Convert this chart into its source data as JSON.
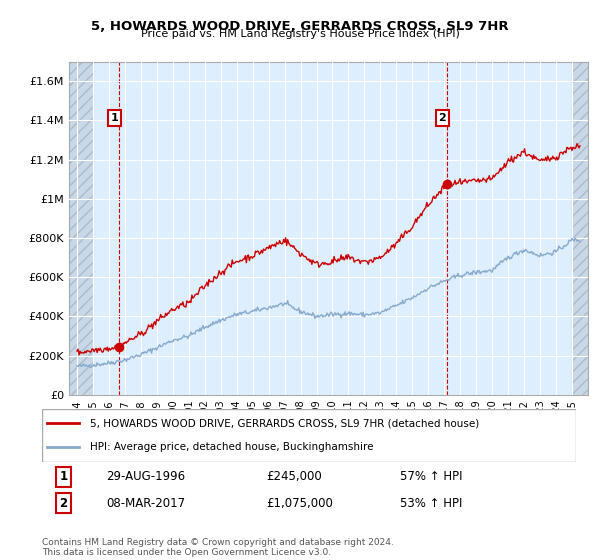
{
  "title": "5, HOWARDS WOOD DRIVE, GERRARDS CROSS, SL9 7HR",
  "subtitle": "Price paid vs. HM Land Registry's House Price Index (HPI)",
  "legend_line1": "5, HOWARDS WOOD DRIVE, GERRARDS CROSS, SL9 7HR (detached house)",
  "legend_line2": "HPI: Average price, detached house, Buckinghamshire",
  "annotation1_date": "29-AUG-1996",
  "annotation1_price": "£245,000",
  "annotation1_hpi": "57% ↑ HPI",
  "annotation2_date": "08-MAR-2017",
  "annotation2_price": "£1,075,000",
  "annotation2_hpi": "53% ↑ HPI",
  "footnote": "Contains HM Land Registry data © Crown copyright and database right 2024.\nThis data is licensed under the Open Government Licence v3.0.",
  "red_color": "#cc0000",
  "blue_color": "#88aacc",
  "chart_bg": "#ddeeff",
  "hatch_color": "#bbccdd",
  "ylim": [
    0,
    1700000
  ],
  "yticks": [
    0,
    200000,
    400000,
    600000,
    800000,
    1000000,
    1200000,
    1400000,
    1600000
  ],
  "ytick_labels": [
    "£0",
    "£200K",
    "£400K",
    "£600K",
    "£800K",
    "£1M",
    "£1.2M",
    "£1.4M",
    "£1.6M"
  ],
  "point1_x": 1996.66,
  "point1_y": 245000,
  "point2_x": 2017.18,
  "point2_y": 1075000,
  "xmin": 1993.5,
  "xmax": 2026.0,
  "hatch_right_start": 2025.0,
  "xticks": [
    1994,
    1995,
    1996,
    1997,
    1998,
    1999,
    2000,
    2001,
    2002,
    2003,
    2004,
    2005,
    2006,
    2007,
    2008,
    2009,
    2010,
    2011,
    2012,
    2013,
    2014,
    2015,
    2016,
    2017,
    2018,
    2019,
    2020,
    2021,
    2022,
    2023,
    2024,
    2025
  ]
}
